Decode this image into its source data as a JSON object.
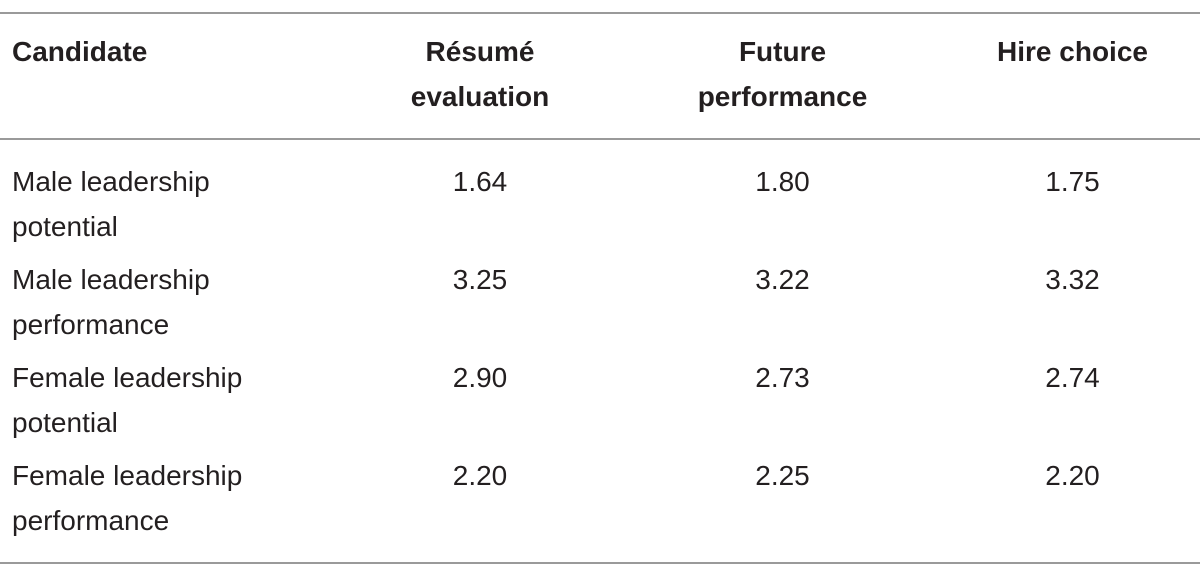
{
  "table": {
    "header": [
      "Candidate",
      "Résumé evaluation",
      "Future performance",
      "Hire choice"
    ],
    "rows": [
      [
        "Male leadership potential",
        "1.64",
        "1.80",
        "1.75"
      ],
      [
        "Male leadership performance",
        "3.25",
        "3.22",
        "3.32"
      ],
      [
        "Female leadership potential",
        "2.90",
        "2.73",
        "2.74"
      ],
      [
        "Female leadership performance",
        "2.20",
        "2.25",
        "2.20"
      ]
    ]
  }
}
